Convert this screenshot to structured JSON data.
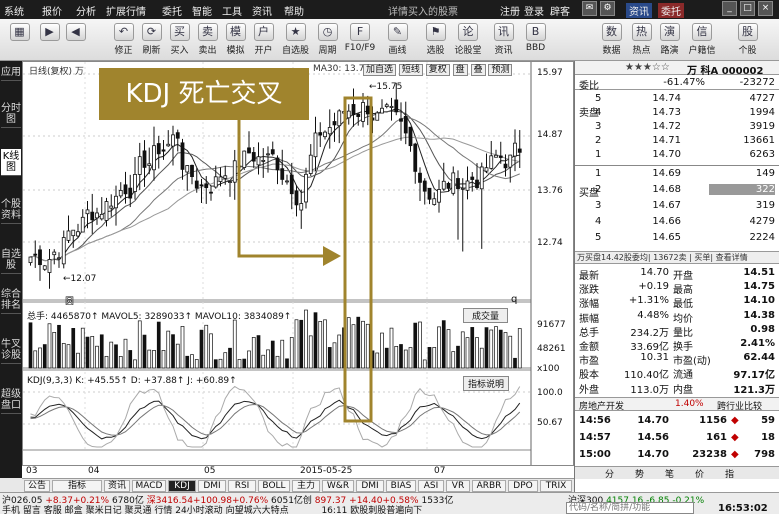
{
  "menu": [
    "系统",
    "报价",
    "分析",
    "扩展行情",
    "委托",
    "智能",
    "工具",
    "资讯",
    "帮助"
  ],
  "menu_title": "详情买入的股票",
  "menu_right": [
    "注册",
    "登录",
    "辟客"
  ],
  "window_buttons": [
    "资讯",
    "委托"
  ],
  "toolbar": {
    "icons": [
      {
        "label": "修正",
        "icon": "undo-icon"
      },
      {
        "label": "刷新",
        "icon": "refresh-icon"
      },
      {
        "label": "买入",
        "icon": "buy-icon"
      },
      {
        "label": "卖出",
        "icon": "sell-icon"
      },
      {
        "label": "模拟",
        "icon": "simulate-icon"
      },
      {
        "label": "开户",
        "icon": "account-icon"
      },
      {
        "label": "自选股",
        "icon": "favorites-icon"
      },
      {
        "label": "周期",
        "icon": "clock-icon"
      },
      {
        "label": "F10/F9",
        "icon": "f10-icon"
      },
      {
        "label": "画线",
        "icon": "pen-icon"
      },
      {
        "label": "选股",
        "icon": "filter-icon"
      },
      {
        "label": "论股堂",
        "icon": "forum-icon"
      },
      {
        "label": "资讯",
        "icon": "news-icon"
      },
      {
        "label": "BBD",
        "icon": "bbd-icon"
      },
      {
        "label": "数据",
        "icon": "data-icon"
      },
      {
        "label": "热点",
        "icon": "hot-icon"
      },
      {
        "label": "路演",
        "icon": "roadshow-icon"
      },
      {
        "label": "户籍信",
        "icon": "info-icon"
      },
      {
        "label": "个股",
        "icon": "stock-icon"
      }
    ],
    "sub_labels": [
      "买入",
      "卖出",
      "模拟"
    ]
  },
  "sidebar": [
    "应用",
    "分时图",
    "K线图",
    "个股资料",
    "自选股",
    "综合排名",
    "牛叉诊股",
    "超级盘口"
  ],
  "chart": {
    "legend_top": "日线(复权) 万",
    "ma_label": "MA30: 13.78",
    "top_buttons": [
      "加自选",
      "短线",
      "复权",
      "盘",
      "叠",
      "预测"
    ],
    "price_labels": [
      "15.97",
      "14.87",
      "13.76",
      "12.74"
    ],
    "high_label": "15.75",
    "low_label": "12.07",
    "vol_legend": "总手: 4465870↑  MAVOL5: 3289033↑  MAVOL10: 3834089↑",
    "vol_select": "成交量",
    "vol_labels": [
      "91677",
      "48261",
      "x100"
    ],
    "kdj_legend": "KDJ(9,3,3) K: +45.55↑  D: +37.88↑  J: +60.89↑",
    "kdj_btn": "指标说明",
    "kdj_labels": [
      "100.0",
      "50.67"
    ],
    "x_labels": [
      "03",
      "04",
      "05",
      "2015-05-25",
      "07"
    ],
    "marker_q": "q",
    "marker_sq": "圆"
  },
  "annotation": "KDJ 死亡交叉",
  "bottom_tabs": [
    "资讯",
    "MACD",
    "KDJ",
    "DMI",
    "RSI",
    "BOLL",
    "主力",
    "W&R",
    "DMI",
    "BIAS",
    "ASI",
    "VR",
    "ARBR",
    "DPO",
    "TRIX"
  ],
  "bottom_left": [
    "公告",
    "指标"
  ],
  "right": {
    "title": "万 科A 000002",
    "webi_label": "委比",
    "webi": "-61.47%",
    "webi_diff": "-23272",
    "sell_label": "卖盘",
    "buy_label": "买盘",
    "sells": [
      {
        "n": "5",
        "p": "14.74",
        "v": "4727"
      },
      {
        "n": "4",
        "p": "14.73",
        "v": "1994"
      },
      {
        "n": "3",
        "p": "14.72",
        "v": "3919"
      },
      {
        "n": "2",
        "p": "14.71",
        "v": "13661"
      },
      {
        "n": "1",
        "p": "14.70",
        "v": "6263"
      }
    ],
    "buys": [
      {
        "n": "1",
        "p": "14.69",
        "v": "149"
      },
      {
        "n": "2",
        "p": "14.68",
        "v": "322"
      },
      {
        "n": "3",
        "p": "14.67",
        "v": "319"
      },
      {
        "n": "4",
        "p": "14.66",
        "v": "4279"
      },
      {
        "n": "5",
        "p": "14.65",
        "v": "2224"
      }
    ],
    "trade_row": "万买盘14.42股委均|  13672卖  |  买单|  查看详情",
    "stats": [
      [
        "最新",
        "14.70",
        "开盘",
        "14.51"
      ],
      [
        "涨跌",
        "+0.19",
        "最高",
        "14.75"
      ],
      [
        "涨幅",
        "+1.31%",
        "最低",
        "14.10"
      ],
      [
        "振幅",
        "4.48%",
        "均价",
        "14.38"
      ],
      [
        "总手",
        "234.2万",
        "量比",
        "0.98"
      ],
      [
        "金额",
        "33.69亿",
        "换手",
        "2.41%"
      ],
      [
        "市盈",
        "10.31",
        "市盈(动)",
        "62.44"
      ],
      [
        "股本",
        "110.40亿",
        "流通",
        "97.17亿"
      ],
      [
        "外盘",
        "113.0万",
        "内盘",
        "121.3万"
      ]
    ],
    "industry": [
      "房地产开发",
      "1.40%",
      "跨行业比较"
    ],
    "ticks": [
      {
        "t": "14:56",
        "p": "14.70",
        "v": "1156",
        "s": "59"
      },
      {
        "t": "14:57",
        "p": "14.56",
        "v": "161",
        "s": "18"
      },
      {
        "t": "15:00",
        "p": "14.70",
        "v": "23238",
        "s": "798"
      }
    ],
    "bottom_tabs": [
      "分",
      "势",
      "笔",
      "价",
      "指"
    ]
  },
  "statusbar": {
    "row1": [
      "沪026.05",
      "+8.37+0.21%",
      "6780亿",
      "深3416.54+100.98+0.76%",
      "6051亿创",
      "897.37 +14.40+0.58%",
      "1533亿",
      "沪深300",
      "4157.16",
      "-6.85",
      "-0.21%"
    ],
    "row2": [
      "手机",
      "留言",
      "客服",
      "邮盒",
      "聚米日记",
      "聚灵通",
      "行情",
      "24小时滚动",
      "向望城六大特点",
      "16:11 欧股刺股普遍向下"
    ],
    "search_placeholder": "代码/名称/简拼/功能",
    "time": "16:53:02"
  },
  "colors": {
    "gold": "#a0842d",
    "up": "#c00000",
    "down": "#008000",
    "ma5": "#222222",
    "ma10": "#888888"
  }
}
